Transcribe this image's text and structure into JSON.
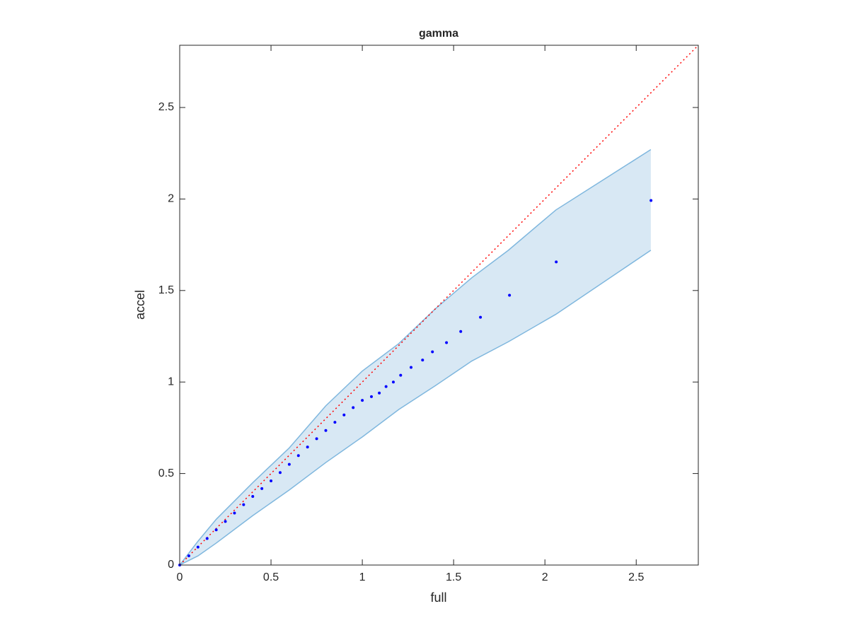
{
  "chart_data": {
    "type": "scatter",
    "title": "gamma",
    "xlabel": "full",
    "ylabel": "accel",
    "xlim": [
      0,
      2.84
    ],
    "ylim": [
      0,
      2.84
    ],
    "xticks": [
      0,
      0.5,
      1,
      1.5,
      2,
      2.5
    ],
    "yticks": [
      0,
      0.5,
      1,
      1.5,
      2,
      2.5
    ],
    "points": {
      "color": "#0000ff",
      "x": [
        0,
        0.05,
        0.1,
        0.15,
        0.2,
        0.25,
        0.3,
        0.35,
        0.4,
        0.45,
        0.5,
        0.55,
        0.6,
        0.65,
        0.7,
        0.75,
        0.8,
        0.85,
        0.9,
        0.95,
        1.0,
        1.05,
        1.093,
        1.13,
        1.17,
        1.21,
        1.267,
        1.33,
        1.384,
        1.461,
        1.539,
        1.647,
        1.806,
        2.062,
        2.581
      ],
      "y": [
        0,
        0.05,
        0.098,
        0.145,
        0.192,
        0.238,
        0.284,
        0.33,
        0.375,
        0.418,
        0.46,
        0.505,
        0.55,
        0.598,
        0.645,
        0.69,
        0.735,
        0.78,
        0.82,
        0.86,
        0.9,
        0.92,
        0.94,
        0.975,
        1.0,
        1.037,
        1.08,
        1.12,
        1.165,
        1.215,
        1.276,
        1.354,
        1.474,
        1.656,
        1.992
      ]
    },
    "band": {
      "color": "#7fb7de",
      "fill": "#d8e8f4",
      "x": [
        0,
        0.1,
        0.2,
        0.4,
        0.6,
        0.8,
        1.0,
        1.2,
        1.4,
        1.6,
        1.8,
        2.06,
        2.58
      ],
      "upper": [
        0,
        0.13,
        0.25,
        0.45,
        0.64,
        0.87,
        1.06,
        1.21,
        1.4,
        1.57,
        1.72,
        1.94,
        2.27
      ],
      "lower": [
        0,
        0.05,
        0.12,
        0.27,
        0.41,
        0.56,
        0.7,
        0.85,
        0.98,
        1.115,
        1.22,
        1.37,
        1.72
      ]
    },
    "reference_line": {
      "color": "#ff0000",
      "style": "dotted",
      "x": [
        0,
        2.84
      ],
      "y": [
        0,
        2.84
      ]
    }
  }
}
